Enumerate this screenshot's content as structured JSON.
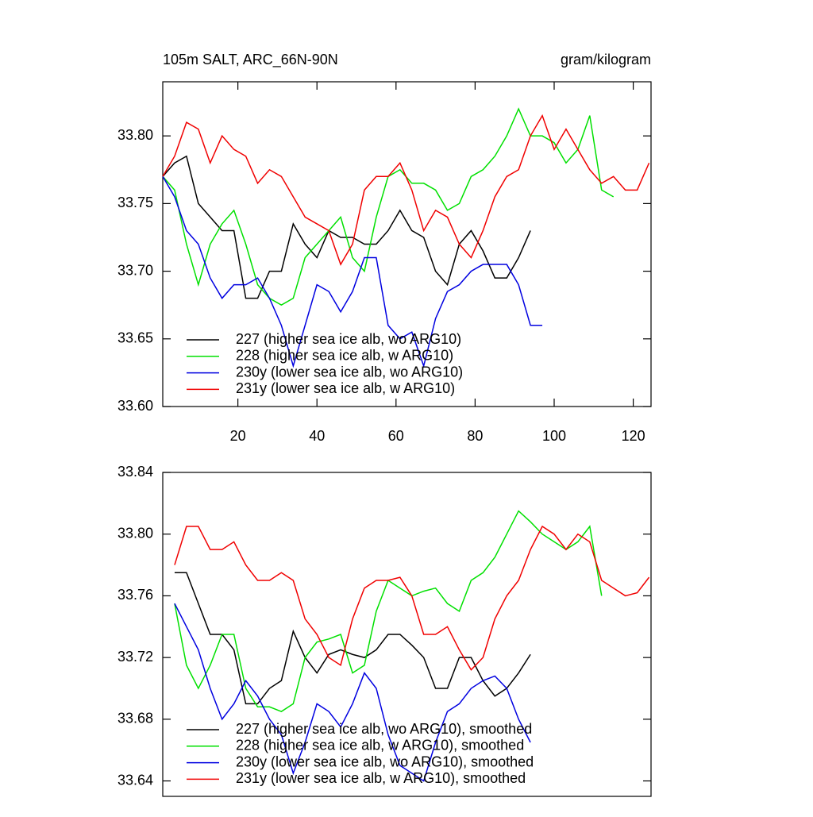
{
  "chart_data": [
    {
      "type": "line",
      "title": "105m SALT, ARC_66N-90N",
      "units_label": "gram/kilogram",
      "x": [
        1,
        4,
        7,
        10,
        13,
        16,
        19,
        22,
        25,
        28,
        31,
        34,
        37,
        40,
        43,
        46,
        49,
        52,
        55,
        58,
        61,
        64,
        67,
        70,
        73,
        76,
        79,
        82,
        85,
        88,
        91,
        94,
        97,
        100,
        103,
        106,
        109,
        112,
        115,
        118,
        121,
        124
      ],
      "xlim": [
        1,
        124.5
      ],
      "ylim": [
        33.6,
        33.84
      ],
      "xticks": [
        20,
        40,
        60,
        80,
        100,
        120
      ],
      "yticks": [
        {
          "value": 33.6,
          "label": "33.60"
        },
        {
          "value": 33.65,
          "label": "33.65"
        },
        {
          "value": 33.7,
          "label": "33.70"
        },
        {
          "value": 33.75,
          "label": "33.75"
        },
        {
          "value": 33.8,
          "label": "33.80"
        }
      ],
      "series": [
        {
          "name": "227 (higher sea ice alb, wo ARG10)",
          "color": "#000000",
          "values": [
            33.77,
            33.78,
            33.785,
            33.75,
            33.74,
            33.73,
            33.73,
            33.68,
            33.68,
            33.7,
            33.7,
            33.735,
            33.72,
            33.71,
            33.73,
            33.725,
            33.725,
            33.72,
            33.72,
            33.73,
            33.745,
            33.73,
            33.725,
            33.7,
            33.69,
            33.72,
            33.73,
            33.715,
            33.695,
            33.695,
            33.71,
            33.73,
            null,
            null,
            null,
            null,
            null,
            null,
            null,
            null,
            null,
            null
          ]
        },
        {
          "name": "228 (higher sea ice alb, w ARG10)",
          "color": "#00e000",
          "values": [
            33.77,
            33.76,
            33.72,
            33.69,
            33.72,
            33.735,
            33.745,
            33.72,
            33.69,
            33.68,
            33.675,
            33.68,
            33.71,
            33.72,
            33.73,
            33.74,
            33.71,
            33.7,
            33.74,
            33.77,
            33.775,
            33.765,
            33.765,
            33.76,
            33.745,
            33.75,
            33.77,
            33.775,
            33.785,
            33.8,
            33.82,
            33.8,
            33.8,
            33.795,
            33.78,
            33.79,
            33.815,
            33.76,
            33.755,
            null,
            null,
            null
          ]
        },
        {
          "name": "230y (lower sea ice alb, wo ARG10)",
          "color": "#0000e0",
          "values": [
            33.77,
            33.755,
            33.73,
            33.72,
            33.695,
            33.68,
            33.69,
            33.69,
            33.695,
            33.68,
            33.66,
            33.63,
            33.66,
            33.69,
            33.685,
            33.67,
            33.685,
            33.71,
            33.71,
            33.66,
            33.65,
            33.655,
            33.63,
            33.665,
            33.685,
            33.69,
            33.7,
            33.705,
            33.705,
            33.705,
            33.69,
            33.66,
            33.66,
            null,
            null,
            null,
            null,
            null,
            null,
            null,
            null,
            null
          ]
        },
        {
          "name": "231y (lower sea ice alb, w ARG10)",
          "color": "#f00000",
          "values": [
            33.77,
            33.785,
            33.81,
            33.805,
            33.78,
            33.8,
            33.79,
            33.785,
            33.765,
            33.775,
            33.77,
            33.755,
            33.74,
            33.735,
            33.73,
            33.705,
            33.72,
            33.76,
            33.77,
            33.77,
            33.78,
            33.76,
            33.73,
            33.745,
            33.74,
            33.72,
            33.71,
            33.73,
            33.755,
            33.77,
            33.775,
            33.8,
            33.815,
            33.79,
            33.805,
            33.79,
            33.775,
            33.765,
            33.77,
            33.76,
            33.76,
            33.78
          ]
        }
      ]
    },
    {
      "type": "line",
      "x": [
        1,
        4,
        7,
        10,
        13,
        16,
        19,
        22,
        25,
        28,
        31,
        34,
        37,
        40,
        43,
        46,
        49,
        52,
        55,
        58,
        61,
        64,
        67,
        70,
        73,
        76,
        79,
        82,
        85,
        88,
        91,
        94,
        97,
        100,
        103,
        106,
        109,
        112,
        115,
        118,
        121,
        124
      ],
      "xlim": [
        1,
        124.5
      ],
      "ylim": [
        33.63,
        33.84
      ],
      "yticks": [
        {
          "value": 33.64,
          "label": "33.64"
        },
        {
          "value": 33.68,
          "label": "33.68"
        },
        {
          "value": 33.72,
          "label": "33.72"
        },
        {
          "value": 33.76,
          "label": "33.76"
        },
        {
          "value": 33.8,
          "label": "33.80"
        },
        {
          "value": 33.84,
          "label": "33.84"
        }
      ],
      "series": [
        {
          "name": "227 (higher sea ice alb, wo ARG10), smoothed",
          "color": "#000000",
          "values": [
            null,
            33.775,
            33.775,
            33.755,
            33.735,
            33.735,
            33.725,
            33.69,
            33.69,
            33.7,
            33.705,
            33.737,
            33.72,
            33.71,
            33.722,
            33.725,
            33.722,
            33.72,
            33.725,
            33.735,
            33.735,
            33.728,
            33.72,
            33.7,
            33.7,
            33.72,
            33.72,
            33.705,
            33.695,
            33.7,
            33.71,
            33.722,
            null,
            null,
            null,
            null,
            null,
            null,
            null,
            null,
            null,
            null
          ]
        },
        {
          "name": "228 (higher sea ice alb, w ARG10), smoothed",
          "color": "#00e000",
          "values": [
            null,
            33.755,
            33.715,
            33.7,
            33.715,
            33.735,
            33.735,
            33.7,
            33.688,
            33.688,
            33.685,
            33.69,
            33.72,
            33.73,
            33.732,
            33.735,
            33.71,
            33.715,
            33.75,
            33.77,
            33.765,
            33.76,
            33.763,
            33.765,
            33.755,
            33.75,
            33.77,
            33.775,
            33.785,
            33.8,
            33.815,
            33.808,
            33.8,
            33.795,
            33.79,
            33.795,
            33.805,
            33.76,
            null,
            null,
            null,
            null
          ]
        },
        {
          "name": "230y (lower sea ice alb, wo ARG10), smoothed",
          "color": "#0000e0",
          "values": [
            null,
            33.755,
            33.74,
            33.725,
            33.7,
            33.68,
            33.69,
            33.705,
            33.695,
            33.68,
            33.67,
            33.645,
            33.665,
            33.69,
            33.685,
            33.675,
            33.69,
            33.71,
            33.7,
            33.67,
            33.65,
            33.645,
            33.64,
            33.665,
            33.685,
            33.69,
            33.7,
            33.705,
            33.708,
            33.7,
            33.68,
            33.665,
            null,
            null,
            null,
            null,
            null,
            null,
            null,
            null,
            null,
            null
          ]
        },
        {
          "name": "231y (lower sea ice alb, w ARG10), smoothed",
          "color": "#f00000",
          "values": [
            null,
            33.78,
            33.805,
            33.805,
            33.79,
            33.79,
            33.795,
            33.78,
            33.77,
            33.77,
            33.775,
            33.77,
            33.745,
            33.735,
            33.72,
            33.715,
            33.745,
            33.765,
            33.77,
            33.77,
            33.772,
            33.76,
            33.735,
            33.735,
            33.74,
            33.725,
            33.712,
            33.72,
            33.745,
            33.76,
            33.77,
            33.79,
            33.805,
            33.8,
            33.79,
            33.8,
            33.795,
            33.77,
            33.765,
            33.76,
            33.762,
            33.772
          ]
        }
      ]
    }
  ]
}
